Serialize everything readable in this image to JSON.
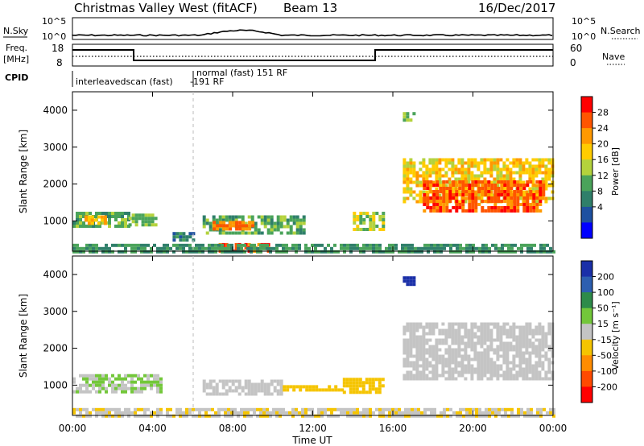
{
  "header": {
    "station": "Christmas Valley West (fitACF)",
    "beam": "Beam 13",
    "date": "16/Dec/2017"
  },
  "top_panels": {
    "nsky_label": "N.Sky",
    "nsky_ticks": [
      "10^5",
      "10^0"
    ],
    "nsearch_label": "N.Search",
    "nsearch_ticks": [
      "10^5",
      "10^0"
    ],
    "freq_label_line1": "Freq.",
    "freq_label_line2": "[MHz]",
    "freq_ticks": [
      "18",
      "8"
    ],
    "nave_label": "Nave",
    "nave_ticks": [
      "60",
      "0"
    ],
    "cpid_label": "CPID",
    "cpid_mode_1": "interleavedscan (fast)",
    "cpid_mode_2": "-191 RF",
    "cpid_mode_3": "normal (fast) 151 RF"
  },
  "axes": {
    "ylabel": "Slant Range [km]",
    "yticks": [
      "4000",
      "3000",
      "2000",
      "1000"
    ],
    "xticks": [
      "00:00",
      "04:00",
      "08:00",
      "12:00",
      "16:00",
      "20:00",
      "00:00"
    ],
    "xlabel": "Time UT"
  },
  "colorbars": {
    "power": {
      "label": "Power [dB]",
      "ticks": [
        "28",
        "24",
        "20",
        "16",
        "12",
        "8",
        "4"
      ],
      "colors": [
        "#ff0000",
        "#ff5500",
        "#ff9900",
        "#ffcc00",
        "#b4d23c",
        "#4aa35a",
        "#2f7f6a",
        "#1e50a0",
        "#0000ff"
      ]
    },
    "velocity": {
      "label": "Velocity [m s⁻¹]",
      "ticks": [
        "200",
        "100",
        "50",
        "15",
        "-15",
        "-50",
        "-100",
        "-200"
      ],
      "colors": [
        "#1a2fa8",
        "#2d5fb0",
        "#2e8b4a",
        "#73c73a",
        "#c4c4c4",
        "#f5c400",
        "#ff8c00",
        "#ff4a00",
        "#ff0000"
      ]
    }
  },
  "chart_data": [
    {
      "type": "heatmap",
      "title": "Power [dB]",
      "xlabel": "Time UT",
      "ylabel": "Slant Range [km]",
      "xlim_hours": [
        0,
        24
      ],
      "ylim": [
        180,
        4500
      ],
      "zlim": [
        0,
        32
      ],
      "regions": [
        {
          "t": [
            0.0,
            2.8
          ],
          "r": [
            850,
            1250
          ],
          "value": 12
        },
        {
          "t": [
            0.6,
            1.6
          ],
          "r": [
            950,
            1150
          ],
          "value": 22
        },
        {
          "t": [
            2.8,
            4.2
          ],
          "r": [
            900,
            1200
          ],
          "value": 14
        },
        {
          "t": [
            5.0,
            6.0
          ],
          "r": [
            500,
            700
          ],
          "value": 8
        },
        {
          "t": [
            6.5,
            11.5
          ],
          "r": [
            700,
            1150
          ],
          "value": 12
        },
        {
          "t": [
            7.0,
            9.0
          ],
          "r": [
            750,
            1000
          ],
          "value": 26
        },
        {
          "t": [
            7.3,
            9.8
          ],
          "r": [
            220,
            400
          ],
          "value": 28
        },
        {
          "t": [
            14.0,
            15.5
          ],
          "r": [
            800,
            1250
          ],
          "value": 16
        },
        {
          "t": [
            16.5,
            24.0
          ],
          "r": [
            1500,
            2700
          ],
          "value": 20
        },
        {
          "t": [
            17.5,
            23.5
          ],
          "r": [
            1300,
            2100
          ],
          "value": 28
        },
        {
          "t": [
            16.5,
            17.0
          ],
          "r": [
            3750,
            3950
          ],
          "value": 14
        },
        {
          "t": [
            0.0,
            24.0
          ],
          "r": [
            180,
            380
          ],
          "value": 10
        }
      ]
    },
    {
      "type": "heatmap",
      "title": "Velocity [m s⁻¹]",
      "xlabel": "Time UT",
      "ylabel": "Slant Range [km]",
      "xlim_hours": [
        0,
        24
      ],
      "ylim": [
        180,
        4500
      ],
      "zlim": [
        -200,
        200
      ],
      "regions": [
        {
          "t": [
            0.0,
            4.5
          ],
          "r": [
            850,
            1300
          ],
          "value": 25
        },
        {
          "t": [
            6.5,
            10.5
          ],
          "r": [
            750,
            1150
          ],
          "value": 0
        },
        {
          "t": [
            10.5,
            13.5
          ],
          "r": [
            850,
            1000
          ],
          "value": -40
        },
        {
          "t": [
            13.5,
            15.5
          ],
          "r": [
            850,
            1200
          ],
          "value": -60
        },
        {
          "t": [
            16.5,
            24.0
          ],
          "r": [
            1200,
            2700
          ],
          "value": 0
        },
        {
          "t": [
            16.5,
            17.0
          ],
          "r": [
            3750,
            3950
          ],
          "value": 200
        },
        {
          "t": [
            0.0,
            24.0
          ],
          "r": [
            180,
            380
          ],
          "value": -20
        }
      ]
    }
  ]
}
